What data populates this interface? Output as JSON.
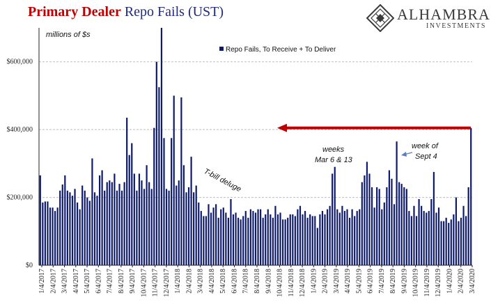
{
  "header": {
    "title_part1": "Primary Dealer",
    "title_part2": "Repo Fails (UST)",
    "logo_name": "ALHAMBRA",
    "logo_sub": "INVESTMENTS",
    "logo_icon": "diamond-lattice-icon"
  },
  "colors": {
    "bar": "#0d1a6e",
    "arrow": "#c00000",
    "title_red": "#c00000",
    "title_blue": "#1f2a7a",
    "note_arrow": "#5a7fbf"
  },
  "chart_data": {
    "type": "bar",
    "ylabel": "millions of $s",
    "ylim": [
      0,
      700000
    ],
    "yticks": [
      0,
      200000,
      400000,
      600000
    ],
    "ytick_labels": [
      "$0",
      "$200,000",
      "$400,000",
      "$600,000"
    ],
    "grid": "horizontal dashed at $200k, $400k, $600k",
    "xtick_labels": [
      "1/4/2017",
      "2/4/2017",
      "3/4/2017",
      "4/4/2017",
      "5/4/2017",
      "6/4/2017",
      "7/4/2017",
      "8/4/2017",
      "9/4/2017",
      "10/4/2017",
      "11/4/2017",
      "12/4/2017",
      "1/4/2018",
      "2/4/2018",
      "3/4/2018",
      "4/4/2018",
      "5/4/2018",
      "6/4/2018",
      "7/4/2018",
      "8/4/2018",
      "9/4/2018",
      "10/4/2018",
      "11/4/2018",
      "12/4/2018",
      "1/4/2019",
      "2/4/2019",
      "3/4/2019",
      "4/4/2019",
      "5/4/2019",
      "6/4/2019",
      "7/4/2019",
      "8/4/2019",
      "9/4/2019",
      "10/4/2019",
      "11/4/2019",
      "12/4/2019",
      "1/4/2020",
      "2/4/2020",
      "3/4/2020"
    ],
    "series": [
      {
        "name": "Repo Fails, To Receive + To Deliver",
        "values": [
          265000,
          185000,
          188000,
          188000,
          170000,
          170000,
          160000,
          170000,
          220000,
          238000,
          265000,
          220000,
          215000,
          205000,
          225000,
          185000,
          165000,
          235000,
          220000,
          200000,
          190000,
          315000,
          215000,
          205000,
          265000,
          280000,
          220000,
          245000,
          250000,
          245000,
          270000,
          220000,
          240000,
          220000,
          245000,
          435000,
          325000,
          360000,
          270000,
          220000,
          270000,
          250000,
          225000,
          295000,
          245000,
          225000,
          405000,
          600000,
          525000,
          700000,
          375000,
          225000,
          220000,
          375000,
          500000,
          235000,
          250000,
          495000,
          295000,
          215000,
          230000,
          320000,
          215000,
          235000,
          185000,
          160000,
          145000,
          145000,
          180000,
          155000,
          170000,
          180000,
          140000,
          165000,
          170000,
          155000,
          140000,
          195000,
          150000,
          155000,
          140000,
          135000,
          145000,
          160000,
          140000,
          165000,
          160000,
          155000,
          165000,
          165000,
          140000,
          150000,
          165000,
          150000,
          140000,
          175000,
          150000,
          155000,
          135000,
          135000,
          140000,
          150000,
          150000,
          145000,
          165000,
          175000,
          150000,
          160000,
          140000,
          150000,
          145000,
          145000,
          110000,
          150000,
          160000,
          150000,
          165000,
          175000,
          270000,
          290000,
          165000,
          155000,
          175000,
          160000,
          165000,
          140000,
          165000,
          145000,
          160000,
          165000,
          245000,
          265000,
          305000,
          270000,
          230000,
          170000,
          230000,
          225000,
          165000,
          185000,
          230000,
          280000,
          255000,
          180000,
          365000,
          245000,
          240000,
          230000,
          225000,
          160000,
          145000,
          175000,
          145000,
          195000,
          175000,
          160000,
          155000,
          160000,
          195000,
          275000,
          155000,
          170000,
          130000,
          130000,
          140000,
          125000,
          135000,
          150000,
          200000,
          130000,
          140000,
          175000,
          145000,
          230000,
          405000
        ]
      }
    ],
    "annotations": [
      {
        "text": "T-bill deluge"
      },
      {
        "text": "weeks",
        "text2": "Mar 6 & 13"
      },
      {
        "text": "week of",
        "text2": "Sept 4"
      }
    ],
    "reference_level": 405000
  }
}
